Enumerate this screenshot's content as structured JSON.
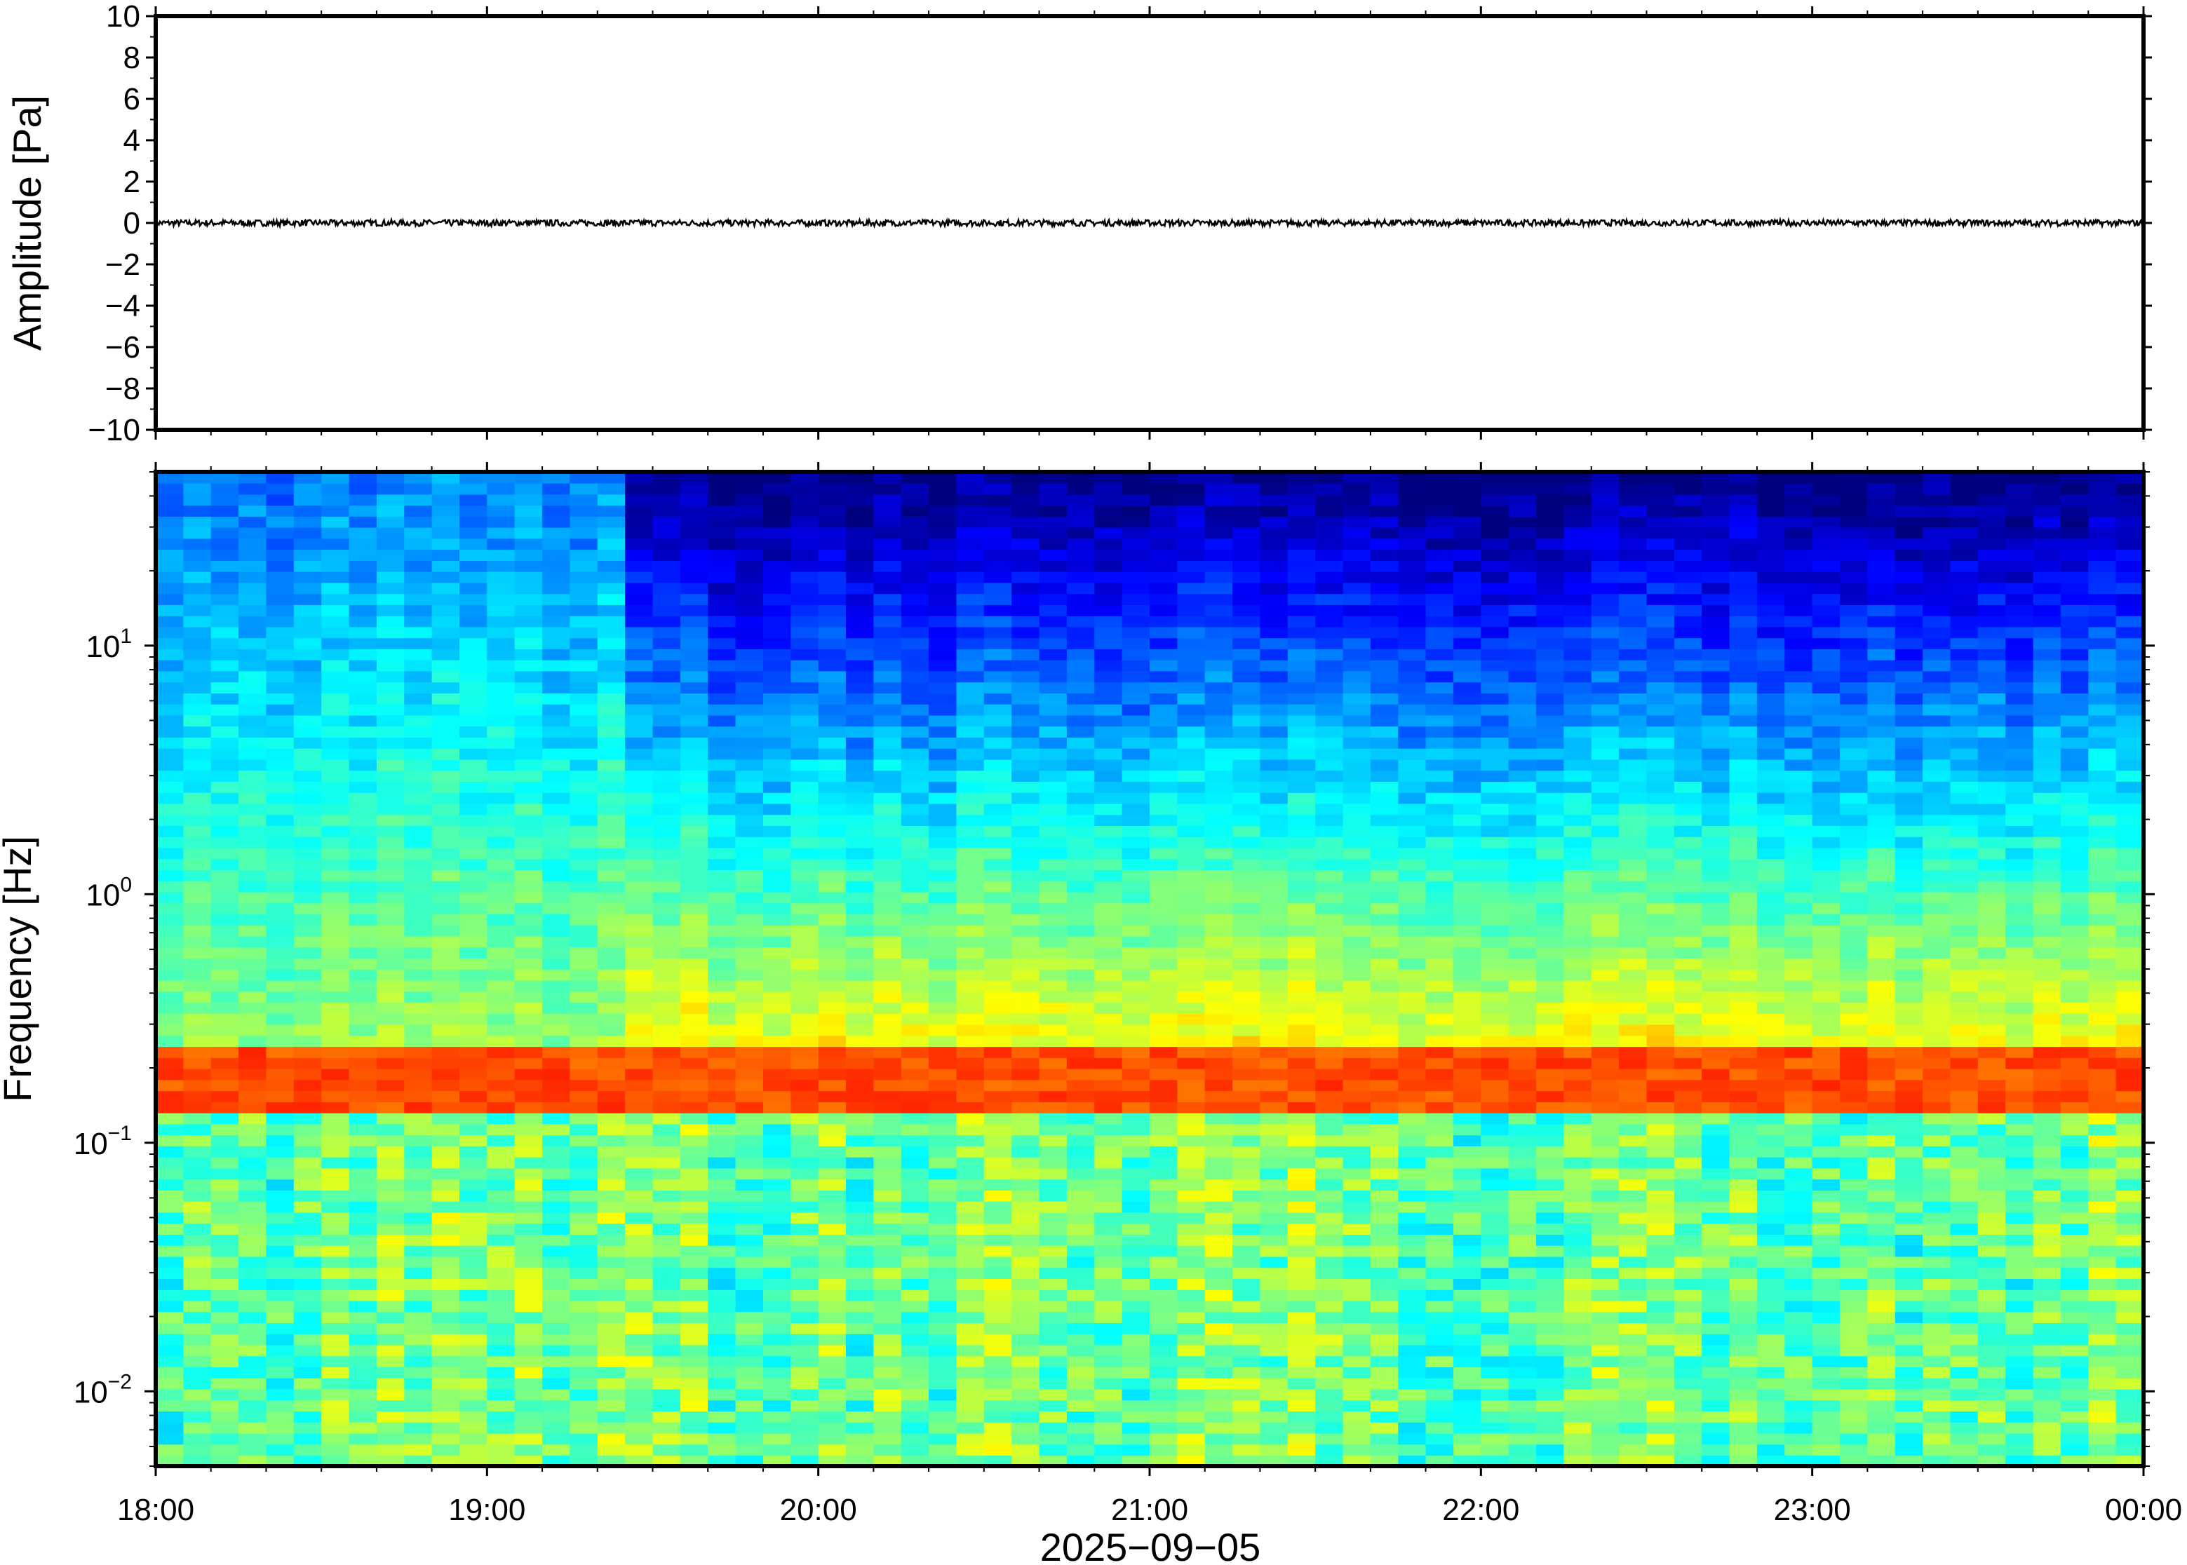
{
  "chart_data": [
    {
      "type": "line",
      "ylabel": "Amplitude [Pa]",
      "ylim": [
        -10,
        10
      ],
      "yticks": [
        "10",
        "8",
        "6",
        "4",
        "2",
        "0",
        "−2",
        "−4",
        "−6",
        "−8",
        "−10"
      ],
      "ytick_values": [
        10,
        8,
        6,
        4,
        2,
        0,
        -2,
        -4,
        -6,
        -8,
        -10
      ],
      "series": [
        {
          "color": "#000000",
          "x": [
            "18:00",
            "19:00",
            "20:00",
            "21:00",
            "22:00",
            "23:00",
            "00:00"
          ],
          "values": [
            0,
            0,
            0,
            0,
            0,
            0,
            0
          ],
          "noise_amplitude": 0.15
        }
      ],
      "grid": false
    },
    {
      "type": "heatmap",
      "ylabel": "Frequency [Hz]",
      "yscale": "log",
      "ylim": [
        0.005,
        50
      ],
      "yticks": [
        {
          "base": "10",
          "exp": "1",
          "value": 10
        },
        {
          "base": "10",
          "exp": "0",
          "value": 1
        },
        {
          "base": "10",
          "exp": "−1",
          "value": 0.1
        },
        {
          "base": "10",
          "exp": "−2",
          "value": 0.01
        }
      ],
      "colormap": [
        "#00007f",
        "#0000ff",
        "#007fff",
        "#00ffff",
        "#7fff7f",
        "#ffff00",
        "#ff7f00",
        "#ff0000",
        "#7f0000"
      ],
      "dominant_band_hz": [
        0.13,
        0.25
      ],
      "broadband_energy_until": "19:22",
      "grid": false
    }
  ],
  "xaxis": {
    "ticks": [
      "18:00",
      "19:00",
      "20:00",
      "21:00",
      "22:00",
      "23:00",
      "00:00"
    ],
    "label": "2025−09−05"
  }
}
